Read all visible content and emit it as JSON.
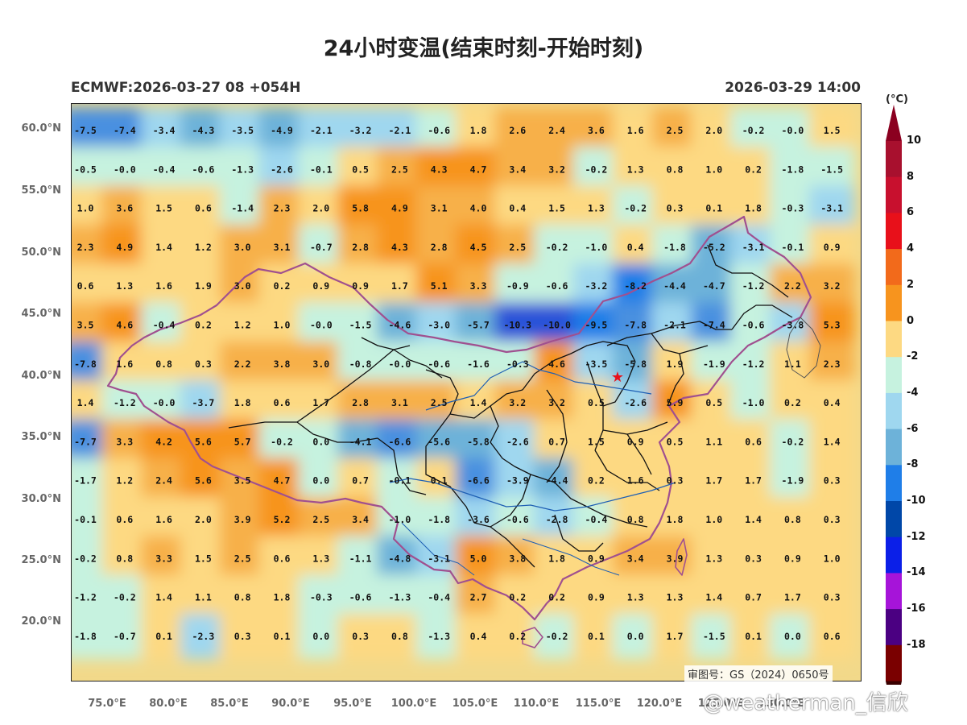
{
  "title": "24小时变温(结束时刻-开始时刻)",
  "model_run": "ECMWF:2026-03-27 08 +054H",
  "valid_time": "2026-03-29 14:00",
  "colorbar": {
    "unit": "(°C)",
    "labels": [
      "10",
      "8",
      "6",
      "4",
      "2",
      "0",
      "-2",
      "-4",
      "-6",
      "-8",
      "-10",
      "-12",
      "-14",
      "-16",
      "-18"
    ],
    "colors": [
      "#ffffff",
      "#ffffff",
      "#c8102e",
      "#e8101a",
      "#f26a1b",
      "#f7941e",
      "#fdd982",
      "#c6f2df",
      "#9fd7ef",
      "#6db2d9",
      "#1f7ee8",
      "#0047a8",
      "#0b1fe8",
      "#a614d9",
      "#4b0082",
      "#7a0000"
    ]
  },
  "axes": {
    "lat_ticks": [
      "60.0°N",
      "55.0°N",
      "50.0°N",
      "45.0°N",
      "40.0°N",
      "35.0°N",
      "30.0°N",
      "25.0°N",
      "20.0°N"
    ],
    "lon_ticks": [
      "75.0°E",
      "80.0°E",
      "85.0°E",
      "90.0°E",
      "95.0°E",
      "100.0°E",
      "105.0°E",
      "110.0°E",
      "115.0°E",
      "120.0°E",
      "125.0°E",
      "130.0°E"
    ]
  },
  "grid_values": [
    [
      "-7.5",
      "-7.4",
      "-3.4",
      "-4.3",
      "-3.5",
      "-4.9",
      "-2.1",
      "-3.2",
      "-2.1",
      "-0.6",
      "1.8",
      "2.6",
      "2.4",
      "3.6",
      "1.6",
      "2.5",
      "2.0",
      "-0.2",
      "-0.0",
      "1.5"
    ],
    [
      "-0.5",
      "-0.0",
      "-0.4",
      "-0.6",
      "-1.3",
      "-2.6",
      "-0.1",
      "0.5",
      "2.5",
      "4.3",
      "4.7",
      "3.4",
      "3.2",
      "-0.2",
      "1.3",
      "0.8",
      "1.0",
      "0.2",
      "-1.8",
      "-1.5"
    ],
    [
      "1.0",
      "3.6",
      "1.5",
      "0.6",
      "-1.4",
      "2.3",
      "2.0",
      "5.8",
      "4.9",
      "3.1",
      "4.0",
      "0.4",
      "1.5",
      "1.3",
      "-0.2",
      "0.3",
      "0.1",
      "1.8",
      "-0.3",
      "-3.1"
    ],
    [
      "2.3",
      "4.9",
      "1.4",
      "1.2",
      "3.0",
      "3.1",
      "-0.7",
      "2.8",
      "4.3",
      "2.8",
      "4.5",
      "2.5",
      "-0.2",
      "-1.0",
      "0.4",
      "-1.8",
      "-5.2",
      "-3.1",
      "-0.1",
      "0.9"
    ],
    [
      "0.6",
      "1.3",
      "1.6",
      "1.9",
      "3.0",
      "0.2",
      "0.9",
      "0.9",
      "1.7",
      "5.1",
      "3.3",
      "-0.9",
      "-0.6",
      "-3.2",
      "-8.2",
      "-4.4",
      "-4.7",
      "-1.2",
      "2.2",
      "3.2"
    ],
    [
      "3.5",
      "4.6",
      "-0.4",
      "0.2",
      "1.2",
      "1.0",
      "-0.0",
      "-1.5",
      "-4.6",
      "-3.0",
      "-5.7",
      "-10.3",
      "-10.0",
      "-9.5",
      "-7.8",
      "-2.1",
      "-7.4",
      "-0.6",
      "-3.8",
      "5.3"
    ],
    [
      "-7.8",
      "1.6",
      "0.8",
      "0.3",
      "2.2",
      "3.8",
      "3.0",
      "-0.8",
      "-0.0",
      "-0.6",
      "-1.6",
      "-0.3",
      "4.6",
      "-3.5",
      "-5.8",
      "1.9",
      "-1.9",
      "-1.2",
      "1.1",
      "2.3"
    ],
    [
      "1.4",
      "-1.2",
      "-0.0",
      "-3.7",
      "1.8",
      "0.6",
      "1.7",
      "2.8",
      "3.1",
      "2.5",
      "1.4",
      "3.2",
      "3.2",
      "0.5",
      "-2.6",
      "5.9",
      "0.5",
      "-1.0",
      "0.2",
      "0.4"
    ],
    [
      "-7.7",
      "3.3",
      "4.2",
      "5.6",
      "5.7",
      "-0.2",
      "0.0",
      "-4.1",
      "-6.6",
      "-5.6",
      "-5.8",
      "-2.6",
      "0.7",
      "1.5",
      "0.9",
      "0.5",
      "1.1",
      "0.6",
      "-0.2",
      "1.4"
    ],
    [
      "-1.7",
      "1.2",
      "2.4",
      "5.6",
      "3.5",
      "4.7",
      "0.0",
      "0.7",
      "-0.1",
      "0.1",
      "-6.6",
      "-3.9",
      "-4.4",
      "0.2",
      "1.6",
      "0.3",
      "1.7",
      "1.7",
      "-1.9",
      "0.3"
    ],
    [
      "-0.1",
      "0.6",
      "1.6",
      "2.0",
      "3.9",
      "5.2",
      "2.5",
      "3.4",
      "-1.0",
      "-1.8",
      "-3.6",
      "-0.6",
      "-2.8",
      "-0.4",
      "0.8",
      "1.8",
      "1.0",
      "1.4",
      "0.8",
      "0.3"
    ],
    [
      "-0.2",
      "0.8",
      "3.3",
      "1.5",
      "2.5",
      "0.6",
      "1.3",
      "-1.1",
      "-4.8",
      "-3.1",
      "5.0",
      "3.8",
      "1.8",
      "0.9",
      "3.4",
      "3.9",
      "1.3",
      "0.3",
      "0.9",
      "1.0"
    ],
    [
      "-1.2",
      "-0.2",
      "1.4",
      "1.1",
      "0.8",
      "1.8",
      "-0.3",
      "-0.6",
      "-1.3",
      "-0.4",
      "2.7",
      "0.2",
      "0.2",
      "0.9",
      "1.3",
      "1.3",
      "1.4",
      "0.7",
      "1.7",
      "0.3"
    ],
    [
      "-1.8",
      "-0.7",
      "0.1",
      "-2.3",
      "0.3",
      "0.1",
      "0.0",
      "0.3",
      "0.8",
      "-1.3",
      "0.4",
      "0.2",
      "-0.2",
      "0.1",
      "0.0",
      "1.7",
      "-1.5",
      "0.1",
      "0.0",
      "0.6"
    ]
  ],
  "capital_marker": "★",
  "gs_note": "审图号：GS（2024）0650号",
  "watermark": "@weatherman_信欣"
}
